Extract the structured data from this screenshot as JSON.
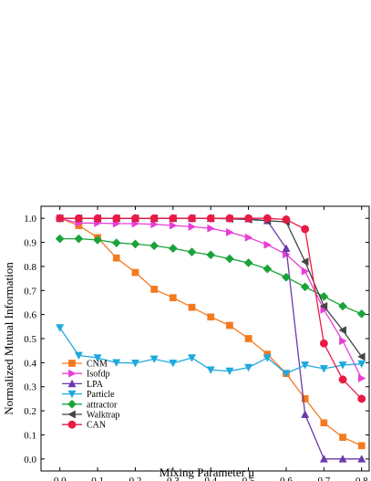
{
  "chart_data": {
    "type": "line",
    "title": "",
    "xlabel": "Mixing Parameter μ",
    "ylabel": "Normalized Mutual Information",
    "xlim": [
      -0.05,
      0.82
    ],
    "ylim": [
      -0.05,
      1.05
    ],
    "xticks": [
      0.0,
      0.1,
      0.2,
      0.3,
      0.4,
      0.5,
      0.6,
      0.7,
      0.8
    ],
    "xtick_labels": [
      "0.0",
      "0.1",
      "0.2",
      "0.3",
      "0.4",
      "0.5",
      "0.6",
      "0.7",
      "0.8"
    ],
    "yticks": [
      0.0,
      0.1,
      0.2,
      0.3,
      0.4,
      0.5,
      0.6,
      0.7,
      0.8,
      0.9,
      1.0
    ],
    "ytick_labels": [
      "0.0",
      "0.1",
      "0.2",
      "0.3",
      "0.4",
      "0.5",
      "0.6",
      "0.7",
      "0.8",
      "0.9",
      "1.0"
    ],
    "grid": false,
    "legend_position": "bottom-left",
    "x": [
      0.0,
      0.05,
      0.1,
      0.15,
      0.2,
      0.25,
      0.3,
      0.35,
      0.4,
      0.45,
      0.5,
      0.55,
      0.6,
      0.65,
      0.7,
      0.75,
      0.8
    ],
    "series": [
      {
        "name": "CNM",
        "marker": "square",
        "color": "#f47a1f",
        "values": [
          1.0,
          0.97,
          0.92,
          0.835,
          0.775,
          0.705,
          0.67,
          0.63,
          0.59,
          0.555,
          0.5,
          0.435,
          0.355,
          0.25,
          0.15,
          0.09,
          0.055
        ]
      },
      {
        "name": "Isofdp",
        "marker": "triangle-right",
        "color": "#e83ed5",
        "values": [
          1.0,
          0.98,
          0.98,
          0.978,
          0.978,
          0.975,
          0.97,
          0.965,
          0.958,
          0.942,
          0.92,
          0.89,
          0.85,
          0.78,
          0.62,
          0.49,
          0.335
        ]
      },
      {
        "name": "LPA",
        "marker": "triangle-up",
        "color": "#6a3aab",
        "values": [
          1.0,
          1.0,
          1.0,
          1.0,
          1.0,
          1.0,
          1.0,
          1.0,
          1.0,
          1.0,
          0.998,
          0.99,
          0.875,
          0.185,
          0.0,
          0.0,
          0.0
        ]
      },
      {
        "name": "Particle",
        "marker": "triangle-down",
        "color": "#1fa9dd",
        "values": [
          0.545,
          0.43,
          0.42,
          0.4,
          0.398,
          0.415,
          0.398,
          0.42,
          0.37,
          0.365,
          0.38,
          0.42,
          0.355,
          0.39,
          0.375,
          0.39,
          0.395
        ]
      },
      {
        "name": "attractor",
        "marker": "diamond",
        "color": "#1aa33a",
        "values": [
          0.915,
          0.915,
          0.91,
          0.898,
          0.893,
          0.886,
          0.875,
          0.86,
          0.848,
          0.832,
          0.815,
          0.79,
          0.755,
          0.715,
          0.675,
          0.635,
          0.603
        ]
      },
      {
        "name": "Walktrap",
        "marker": "triangle-left",
        "color": "#444444",
        "values": [
          1.0,
          1.0,
          1.0,
          1.0,
          1.0,
          1.0,
          1.0,
          1.0,
          1.0,
          0.998,
          0.995,
          0.99,
          0.985,
          0.82,
          0.635,
          0.535,
          0.425
        ]
      },
      {
        "name": "CAN",
        "marker": "circle",
        "color": "#ea1a45",
        "values": [
          1.0,
          1.0,
          1.0,
          1.0,
          1.0,
          1.0,
          1.0,
          1.0,
          1.0,
          1.0,
          1.0,
          1.0,
          0.995,
          0.955,
          0.48,
          0.33,
          0.25
        ]
      }
    ]
  }
}
